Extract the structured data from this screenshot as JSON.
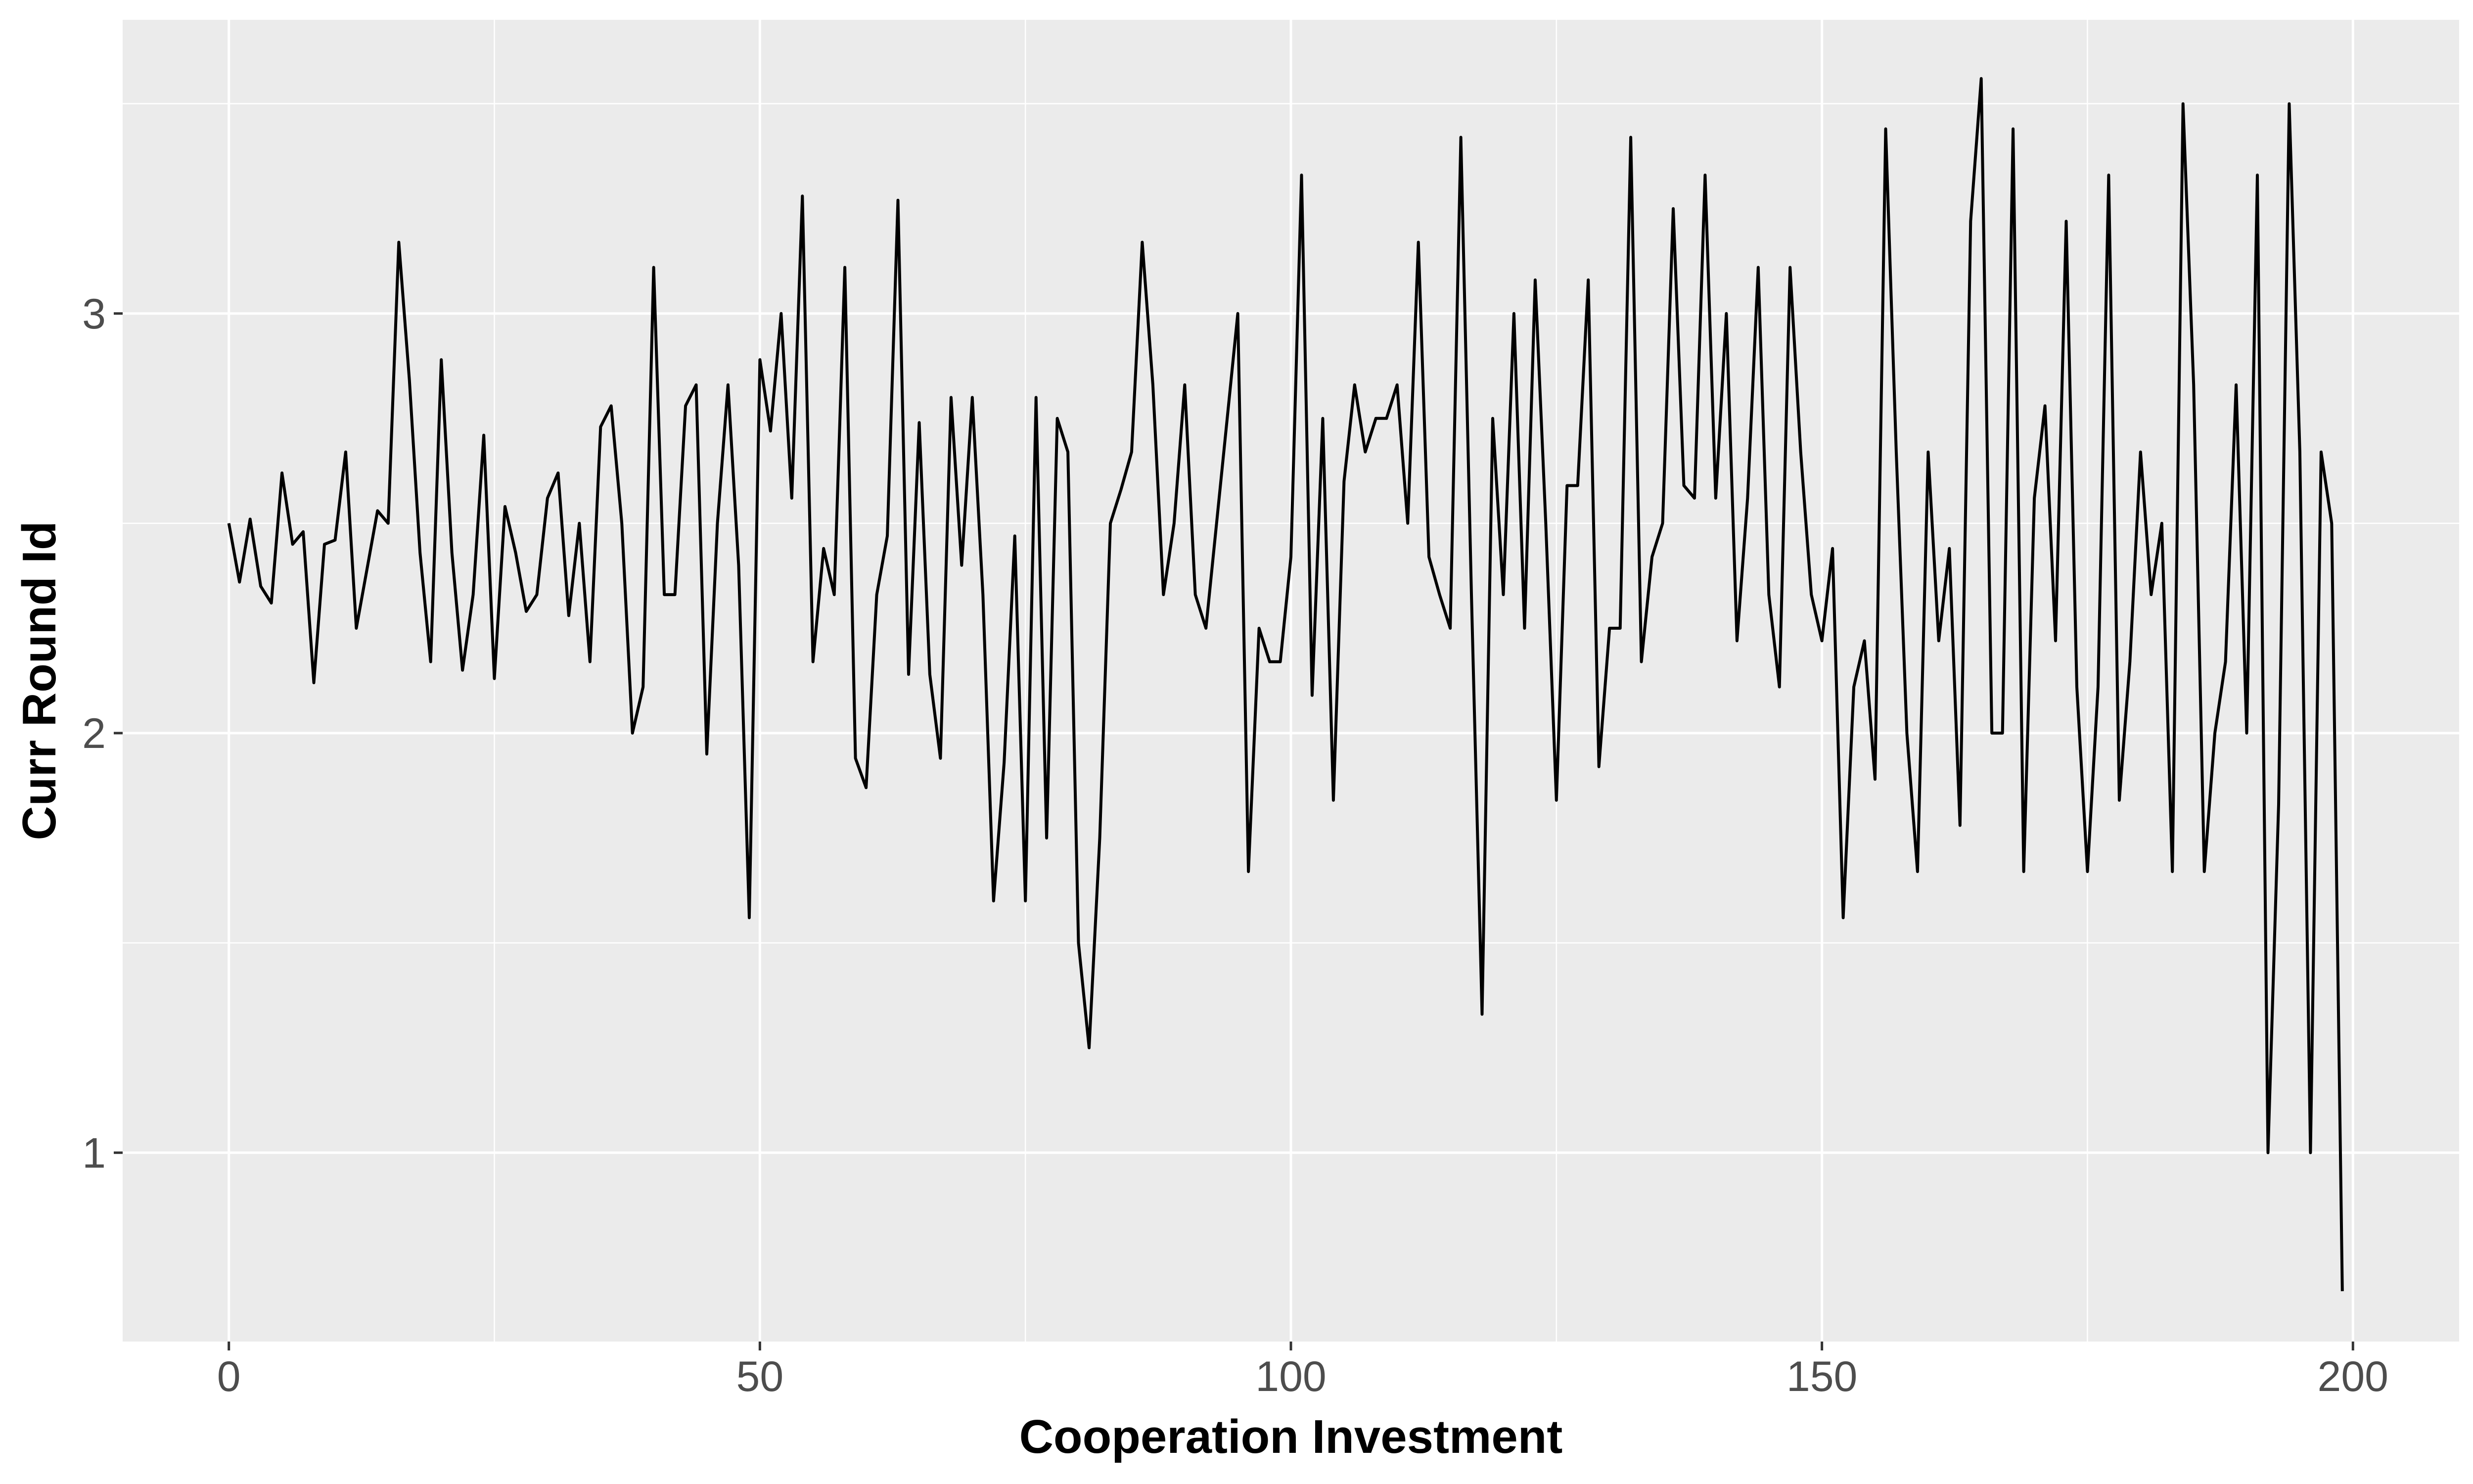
{
  "chart_data": {
    "type": "line",
    "xlabel": "Cooperation Investment",
    "ylabel": "Curr Round Id",
    "xlim": [
      -10,
      210
    ],
    "ylim": [
      0.55,
      3.7
    ],
    "x_ticks": [
      0,
      50,
      100,
      150,
      200
    ],
    "y_ticks": [
      1,
      2,
      3
    ],
    "grid": true,
    "background": "#ebebeb",
    "gridline_color": "#ffffff",
    "line_color": "#000000",
    "series": [
      {
        "x": [
          0,
          1,
          2,
          3,
          4,
          5,
          6,
          7,
          8,
          9,
          10,
          11,
          12,
          13,
          14,
          15,
          16,
          17,
          18,
          19,
          20,
          21,
          22,
          23,
          24,
          25,
          26,
          27,
          28,
          29,
          30,
          31,
          32,
          33,
          34,
          35,
          36,
          37,
          38,
          39,
          40,
          41,
          42,
          43,
          44,
          45,
          46,
          47,
          48,
          49,
          50,
          51,
          52,
          53,
          54,
          55,
          56,
          57,
          58,
          59,
          60,
          61,
          62,
          63,
          64,
          65,
          66,
          67,
          68,
          69,
          70,
          71,
          72,
          73,
          74,
          75,
          76,
          77,
          78,
          79,
          80,
          81,
          82,
          83,
          84,
          85,
          86,
          87,
          88,
          89,
          90,
          91,
          92,
          93,
          94,
          95,
          96,
          97,
          98,
          99,
          100,
          101,
          102,
          103,
          104,
          105,
          106,
          107,
          108,
          109,
          110,
          111,
          112,
          113,
          114,
          115,
          116,
          117,
          118,
          119,
          120,
          121,
          122,
          123,
          124,
          125,
          126,
          127,
          128,
          129,
          130,
          131,
          132,
          133,
          134,
          135,
          136,
          137,
          138,
          139,
          140,
          141,
          142,
          143,
          144,
          145,
          146,
          147,
          148,
          149,
          150,
          151,
          152,
          153,
          154,
          155,
          156,
          157,
          158,
          159,
          160,
          161,
          162,
          163,
          164,
          165,
          166,
          167,
          168,
          169,
          170,
          171,
          172,
          173,
          174,
          175,
          176,
          177,
          178,
          179,
          180,
          181,
          182,
          183,
          184,
          185,
          186,
          187,
          188,
          189,
          190,
          191,
          192,
          193,
          194,
          195,
          196,
          197,
          198,
          199
        ],
        "y": [
          2.5,
          2.36,
          2.51,
          2.35,
          2.31,
          2.62,
          2.45,
          2.48,
          2.12,
          2.45,
          2.46,
          2.67,
          2.25,
          2.39,
          2.53,
          2.5,
          3.17,
          2.84,
          2.43,
          2.17,
          2.89,
          2.43,
          2.15,
          2.33,
          2.71,
          2.13,
          2.54,
          2.43,
          2.29,
          2.33,
          2.56,
          2.62,
          2.28,
          2.5,
          2.17,
          2.73,
          2.78,
          2.5,
          2.0,
          2.11,
          3.11,
          2.33,
          2.33,
          2.78,
          2.83,
          1.95,
          2.5,
          2.83,
          2.4,
          1.56,
          2.89,
          2.72,
          3.0,
          2.56,
          3.28,
          2.17,
          2.44,
          2.33,
          3.11,
          1.94,
          1.87,
          2.33,
          2.47,
          3.27,
          2.14,
          2.74,
          2.14,
          1.94,
          2.8,
          2.4,
          2.8,
          2.33,
          1.6,
          1.93,
          2.47,
          1.6,
          2.8,
          1.75,
          2.75,
          2.67,
          1.5,
          1.25,
          1.75,
          2.5,
          2.58,
          2.67,
          3.17,
          2.83,
          2.33,
          2.5,
          2.83,
          2.33,
          2.25,
          2.5,
          2.75,
          3.0,
          1.67,
          2.25,
          2.17,
          2.17,
          2.42,
          3.33,
          2.09,
          2.75,
          1.84,
          2.6,
          2.83,
          2.67,
          2.75,
          2.75,
          2.83,
          2.5,
          3.17,
          2.42,
          2.33,
          2.25,
          3.42,
          2.33,
          1.33,
          2.75,
          2.33,
          3.0,
          2.25,
          3.08,
          2.5,
          1.84,
          2.59,
          2.59,
          3.08,
          1.92,
          2.25,
          2.25,
          3.42,
          2.17,
          2.42,
          2.5,
          3.25,
          2.59,
          2.56,
          3.33,
          2.56,
          3.0,
          2.22,
          2.56,
          3.11,
          2.33,
          2.11,
          3.11,
          2.67,
          2.33,
          2.22,
          2.44,
          1.56,
          2.11,
          2.22,
          1.89,
          3.44,
          2.67,
          2.0,
          1.67,
          2.67,
          2.22,
          2.44,
          1.78,
          3.22,
          3.56,
          2.0,
          2.0,
          3.44,
          1.67,
          2.56,
          2.78,
          2.22,
          3.22,
          2.11,
          1.67,
          2.11,
          3.33,
          1.84,
          2.17,
          2.67,
          2.33,
          2.5,
          1.67,
          3.5,
          2.83,
          1.67,
          2.0,
          2.17,
          2.83,
          2.0,
          3.33,
          1.0,
          1.83,
          3.5,
          2.67,
          1.0,
          2.67,
          2.5,
          0.67
        ]
      }
    ]
  }
}
